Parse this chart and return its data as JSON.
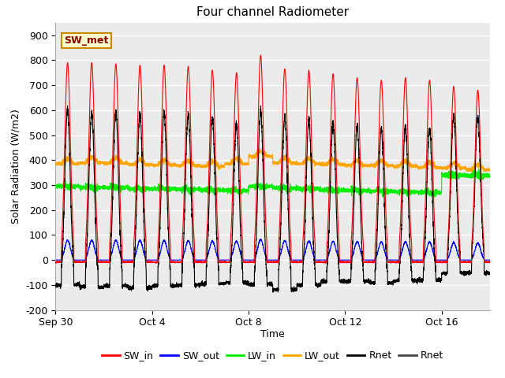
{
  "title": "Four channel Radiometer",
  "xlabel": "Time",
  "ylabel": "Solar Radiation (W/m2)",
  "ylim": [
    -200,
    950
  ],
  "yticks": [
    -200,
    -100,
    0,
    100,
    200,
    300,
    400,
    500,
    600,
    700,
    800,
    900
  ],
  "x_tick_labels": [
    "Sep 30",
    "Oct 4",
    "Oct 8",
    "Oct 12",
    "Oct 16"
  ],
  "x_tick_positions": [
    0,
    4,
    8,
    12,
    16
  ],
  "plot_bg": "#ebebeb",
  "annotation_text": "SW_met",
  "annotation_bg": "#ffffcc",
  "annotation_border": "#cc8800",
  "SW_in_color": "#ff0000",
  "SW_out_color": "#0000ff",
  "LW_in_color": "#00ee00",
  "LW_out_color": "#ffa500",
  "Rnet_color": "#000000",
  "n_days": 18,
  "points_per_day": 288,
  "sw_peaks": [
    790,
    790,
    785,
    780,
    780,
    775,
    760,
    750,
    820,
    765,
    760,
    745,
    730,
    720,
    730,
    720,
    695,
    680
  ],
  "lw_in_base": [
    295,
    290,
    290,
    285,
    285,
    282,
    280,
    278,
    295,
    288,
    285,
    280,
    278,
    275,
    273,
    270,
    340,
    338
  ],
  "lw_out_base": [
    385,
    390,
    388,
    382,
    380,
    378,
    375,
    385,
    415,
    388,
    385,
    382,
    378,
    378,
    375,
    370,
    368,
    362
  ],
  "rnet_night": [
    -100,
    -108,
    -103,
    -112,
    -104,
    -100,
    -95,
    -90,
    -97,
    -118,
    -100,
    -85,
    -85,
    -92,
    -83,
    -80,
    -53,
    -52
  ]
}
